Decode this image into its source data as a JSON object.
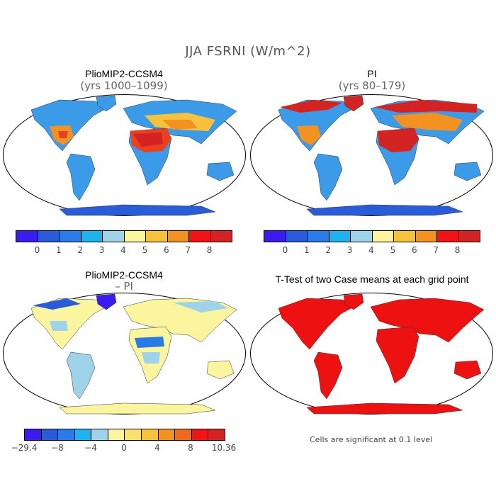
{
  "title": "JJA FSRNI (W/m^2)",
  "panels": {
    "top_left": {
      "title": "PlioMIP2-CCSM4",
      "subtitle": "(yrs 1000–1099)"
    },
    "top_right": {
      "title": "PI",
      "subtitle": "(yrs 80–179)"
    },
    "bottom_left": {
      "title": "PlioMIP2-CCSM4",
      "subtitle": "– PI"
    },
    "bottom_right": {
      "title": "T-Test of two Case means at each grid point",
      "footnote": "Cells are significant at 0.1 level"
    }
  },
  "colorbars": {
    "absolute": {
      "colors": [
        "#3b1cf0",
        "#2a5bd8",
        "#2a7ae8",
        "#1fb2ef",
        "#9ed3ea",
        "#fbf5a0",
        "#f6c23c",
        "#f39220",
        "#f21414",
        "#d42323"
      ],
      "labels": [
        "0",
        "1",
        "2",
        "3",
        "4",
        "5",
        "6",
        "7",
        "8"
      ]
    },
    "difference": {
      "colors": [
        "#3b1cf0",
        "#2a5bd8",
        "#2a7ae8",
        "#1fb2ef",
        "#9ed3ea",
        "#fbf5a0",
        "#fbe070",
        "#f6c23c",
        "#f39220",
        "#ef6a1c",
        "#f21414",
        "#d42323"
      ],
      "labels": [
        "−29.4",
        "−8",
        "−4",
        "0",
        "4",
        "8",
        "10.36"
      ]
    }
  },
  "map_colors": {
    "ocean": "#ffffff",
    "tl_land": "#3c9be8",
    "tl_hot": "#e84020",
    "tl_warm": "#f6c23c",
    "tr_land": "#3c9be8",
    "tr_hot": "#d42323",
    "tr_warm": "#f39220",
    "bl_land": "#fbf5a0",
    "bl_cool": "#9ed3ea",
    "bl_cold": "#2a5bd8",
    "br_land": "#ee1111"
  }
}
